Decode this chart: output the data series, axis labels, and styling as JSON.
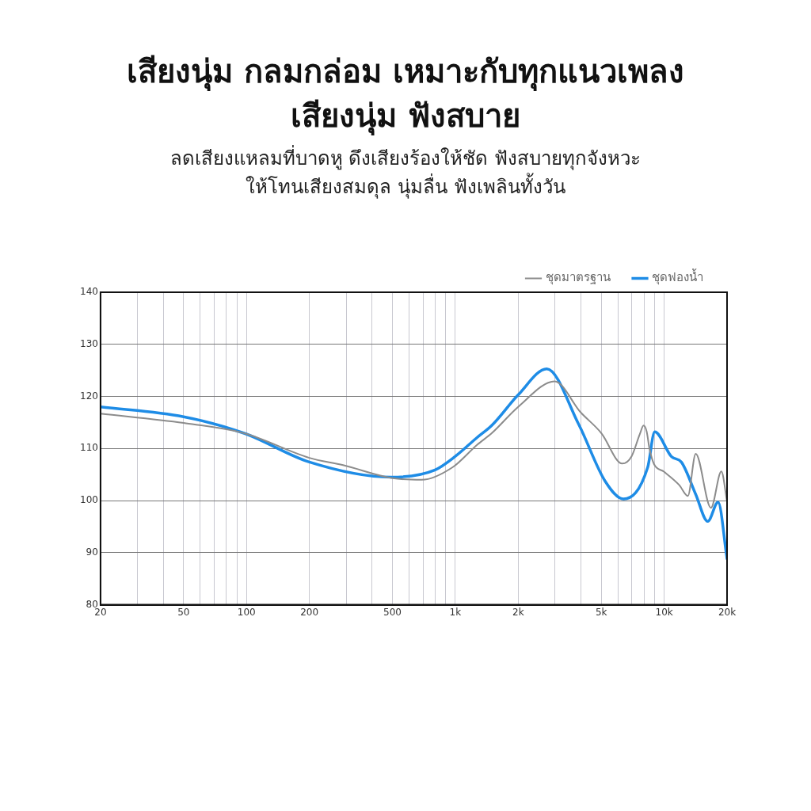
{
  "chart_data": {
    "type": "line",
    "title": "เสียงนุ่ม กลมกล่อม เหมาะกับทุกแนวเพลง\nเสียงนุ่ม ฟังสบาย",
    "subtitle": "ลดเสียงแหลมที่บาดหู ดึงเสียงร้องให้ชัด ฟังสบายทุกจังหวะ\nให้โทนเสียงสมดุล นุ่มลื่น ฟังเพลินทั้งวัน",
    "log": "x",
    "grid": true,
    "legend": "top right",
    "marker": "none",
    "line_style": "solid",
    "xlim": [
      20,
      20000
    ],
    "ylim": [
      80,
      140
    ],
    "yticks": [
      80,
      90,
      100,
      110,
      120,
      130,
      140
    ],
    "xticks": [
      20,
      {
        "value": 30,
        "label": null
      },
      {
        "value": 40,
        "label": null
      },
      50,
      {
        "value": 60,
        "label": null
      },
      {
        "value": 70,
        "label": null
      },
      {
        "value": 80,
        "label": null
      },
      {
        "value": 90,
        "label": null
      },
      100,
      200,
      {
        "value": 300,
        "label": null
      },
      {
        "value": 400,
        "label": null
      },
      500,
      {
        "value": 600,
        "label": null
      },
      {
        "value": 700,
        "label": null
      },
      {
        "value": 800,
        "label": null
      },
      {
        "value": 900,
        "label": null
      },
      {
        "value": 1000,
        "label": "1k"
      },
      {
        "value": 2000,
        "label": "2k"
      },
      {
        "value": 3000,
        "label": null
      },
      {
        "value": 4000,
        "label": null
      },
      {
        "value": 5000,
        "label": "5k"
      },
      {
        "value": 6000,
        "label": null
      },
      {
        "value": 7000,
        "label": null
      },
      {
        "value": 8000,
        "label": null
      },
      {
        "value": 9000,
        "label": null
      },
      {
        "value": 10000,
        "label": "10k"
      },
      {
        "value": 20000,
        "label": "20k"
      }
    ],
    "series": [
      {
        "name": "ชุดมาตรฐาน",
        "color": "#8c8c8c",
        "x": [
          20,
          50,
          98,
          200,
          290,
          500,
          690,
          970,
          1270,
          1500,
          2000,
          2990,
          3970,
          4990,
          6300,
          6980,
          7650,
          7970,
          8250,
          8500,
          8940,
          9940,
          11800,
          12980,
          14160,
          16750,
          18780,
          20000
        ],
        "values": [
          116.7,
          114.9,
          112.9,
          108.2,
          106.8,
          104.3,
          104.0,
          106.4,
          110.7,
          113.0,
          118.0,
          122.9,
          117.0,
          113.0,
          107.1,
          108.5,
          112.8,
          114.4,
          113.2,
          110.0,
          107.0,
          105.6,
          103.0,
          100.9,
          109.0,
          98.6,
          105.6,
          99.8
        ]
      },
      {
        "name": "ชุดฟองน้ำ",
        "color": "#1e8ce6",
        "x": [
          20,
          50,
          98,
          200,
          493,
          800,
          1000,
          1270,
          1500,
          2000,
          2740,
          3900,
          5220,
          6390,
          8340,
          9010,
          10860,
          12080,
          14160,
          16170,
          18120,
          20000
        ],
        "values": [
          118.0,
          116.1,
          112.9,
          107.4,
          104.5,
          105.9,
          108.5,
          112.1,
          114.5,
          120.3,
          125.3,
          114.6,
          103.7,
          100.3,
          106.4,
          113.2,
          108.4,
          107.4,
          101.2,
          96.0,
          99.7,
          88.8
        ]
      }
    ]
  }
}
